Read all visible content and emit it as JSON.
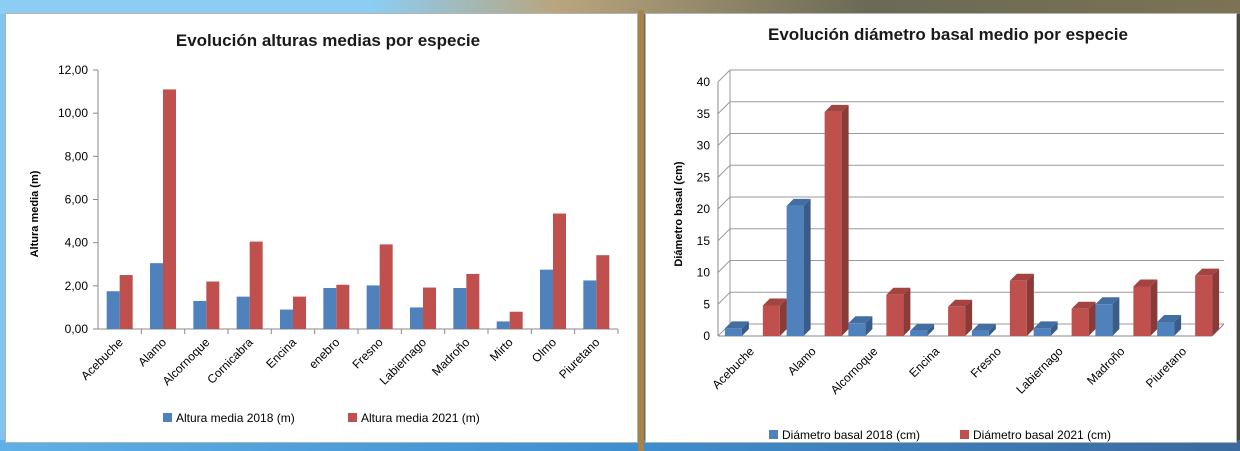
{
  "colors": {
    "blue": "#4f81bd",
    "red": "#c0504d"
  },
  "chart_data": [
    {
      "type": "bar",
      "title": "Evolución alturas medias por especie",
      "xlabel": "",
      "ylabel": "Altura media (m)",
      "ylim": [
        0,
        12
      ],
      "yticks": [
        "0,00",
        "2,00",
        "4,00",
        "6,00",
        "8,00",
        "10,00",
        "12,00"
      ],
      "grid": false,
      "legend_position": "bottom",
      "categories": [
        "Acebuche",
        "Alamo",
        "Alcornoque",
        "Cornicabra",
        "Encina",
        "enebro",
        "Fresno",
        "Labiernago",
        "Madroño",
        "Mirto",
        "Olmo",
        "Piuretano"
      ],
      "series": [
        {
          "name": "Altura media 2018 (m)",
          "color": "#4f81bd",
          "values": [
            1.75,
            3.05,
            1.3,
            1.5,
            0.9,
            1.9,
            2.02,
            1.0,
            1.9,
            0.35,
            2.75,
            2.25
          ]
        },
        {
          "name": "Altura media 2021 (m)",
          "color": "#c0504d",
          "values": [
            2.5,
            11.1,
            2.2,
            4.05,
            1.5,
            2.05,
            3.92,
            1.92,
            2.55,
            0.8,
            5.35,
            3.42
          ]
        }
      ]
    },
    {
      "type": "bar",
      "title": "Evolución diámetro basal medio por especie",
      "xlabel": "",
      "ylabel": "Diámetro basal (cm)",
      "ylim": [
        0,
        40
      ],
      "yticks": [
        "0",
        "5",
        "10",
        "15",
        "20",
        "25",
        "30",
        "35",
        "40"
      ],
      "grid": true,
      "legend_position": "bottom",
      "categories": [
        "Acebuche",
        "Alamo",
        "Alcornoque",
        "Encina",
        "Fresno",
        "Labiernago",
        "Madroño",
        "Piuretano"
      ],
      "series": [
        {
          "name": "Diámetro basal 2018 (cm)",
          "color": "#4f81bd",
          "values": [
            1.2,
            20.5,
            2.0,
            0.8,
            0.8,
            1.2,
            5.0,
            2.2
          ]
        },
        {
          "name": "Diámetro basal 2021 (cm)",
          "color": "#c0504d",
          "values": [
            4.8,
            35.3,
            6.5,
            4.6,
            8.7,
            4.3,
            7.8,
            9.5
          ]
        }
      ]
    }
  ]
}
